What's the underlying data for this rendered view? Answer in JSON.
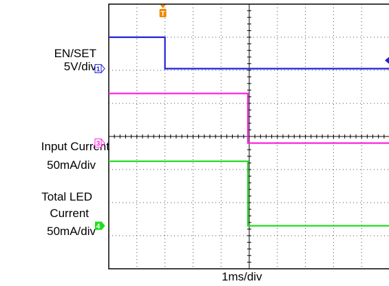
{
  "labels": {
    "ch1_name": "EN/SET",
    "ch1_scale": "5V/div",
    "ch3_name": "Input Current",
    "ch3_scale": "50mA/div",
    "ch4_name_line1": "Total LED",
    "ch4_name_line2": "Current",
    "ch4_scale": "50mA/div",
    "timebase": "1ms/div"
  },
  "markers": {
    "trigger": "T",
    "ch1": "1",
    "ch3": "3",
    "ch4": "4"
  },
  "colors": {
    "ch1": "#1f1fd6",
    "ch3": "#ff22dd",
    "ch4": "#22dd22",
    "trigger": "#ee8800",
    "grid": "#000000"
  },
  "chart_data": {
    "type": "line",
    "title": "",
    "xlabel": "1ms/div",
    "grid": true,
    "x_unit": "div",
    "xlim": [
      0,
      10
    ],
    "ylim": [
      0,
      8
    ],
    "series": [
      {
        "name": "EN/SET",
        "scale": "5V/div",
        "x": [
          0,
          2.0,
          2.0,
          10
        ],
        "y": [
          7.0,
          7.0,
          6.05,
          6.05
        ]
      },
      {
        "name": "Input Current",
        "scale": "50mA/div",
        "x": [
          0,
          4.95,
          4.95,
          10
        ],
        "y": [
          5.3,
          5.3,
          3.8,
          3.8
        ]
      },
      {
        "name": "Total LED Current",
        "scale": "50mA/div",
        "x": [
          0,
          4.95,
          4.95,
          10
        ],
        "y": [
          3.25,
          3.25,
          1.3,
          1.3
        ]
      }
    ]
  }
}
